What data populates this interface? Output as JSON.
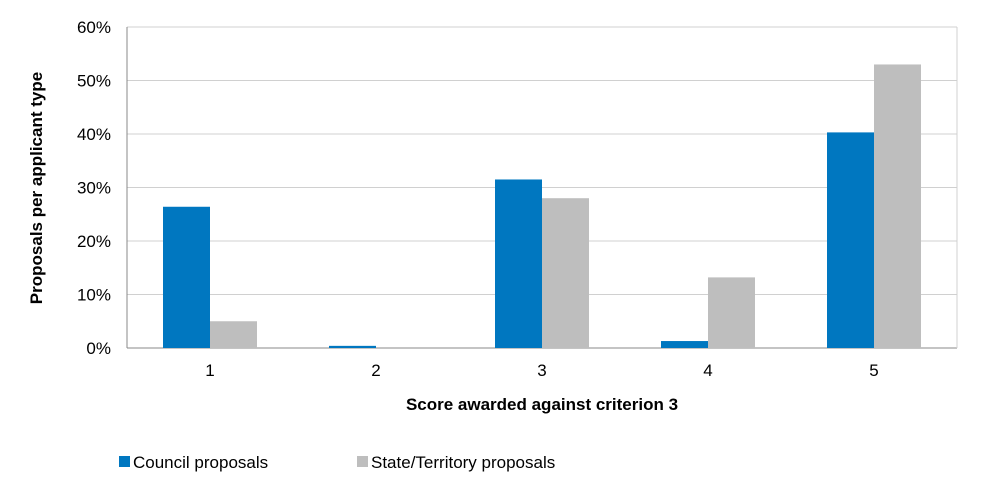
{
  "chart_data": {
    "type": "bar",
    "xlabel": "Score awarded against criterion 3",
    "ylabel": "Proposals per applicant type",
    "categories": [
      "1",
      "2",
      "3",
      "4",
      "5"
    ],
    "y_tick_labels": [
      "0%",
      "10%",
      "20%",
      "30%",
      "40%",
      "50%",
      "60%"
    ],
    "ylim": [
      0,
      60
    ],
    "unit": "%",
    "grid": true,
    "legend_position": "bottom-left",
    "series": [
      {
        "name": "Council proposals",
        "color": "#0077C0",
        "values": [
          26.4,
          0.4,
          31.5,
          1.3,
          40.3
        ]
      },
      {
        "name": "State/Territory proposals",
        "color": "#BEBEBE",
        "values": [
          5.0,
          0,
          28.0,
          13.2,
          53.0
        ]
      }
    ]
  }
}
